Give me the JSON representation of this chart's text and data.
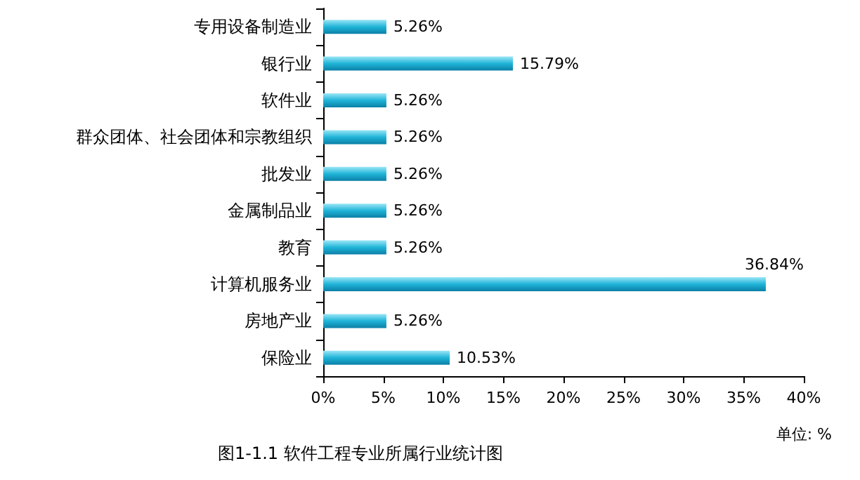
{
  "chart_data": {
    "type": "bar",
    "orientation": "horizontal",
    "title": "图1-1.1 软件工程专业所属行业统计图",
    "categories": [
      "专用设备制造业",
      "银行业",
      "软件业",
      "群众团体、社会团体和宗教组织",
      "批发业",
      "金属制品业",
      "教育",
      "计算机服务业",
      "房地产业",
      "保险业"
    ],
    "values": [
      5.26,
      15.79,
      5.26,
      5.26,
      5.26,
      5.26,
      5.26,
      36.84,
      5.26,
      10.53
    ],
    "value_labels": [
      "5.26%",
      "15.79%",
      "5.26%",
      "5.26%",
      "5.26%",
      "5.26%",
      "5.26%",
      "36.84%",
      "5.26%",
      "10.53%"
    ],
    "color": "#1fb4d8",
    "xlim": [
      0,
      40
    ],
    "xticks": [
      {
        "value": 0,
        "label": "0%"
      },
      {
        "value": 5,
        "label": "5%"
      },
      {
        "value": 10,
        "label": "10%"
      },
      {
        "value": 15,
        "label": "15%"
      },
      {
        "value": 20,
        "label": "20%"
      },
      {
        "value": 25,
        "label": "25%"
      },
      {
        "value": 30,
        "label": "30%"
      },
      {
        "value": 35,
        "label": "35%"
      },
      {
        "value": 40,
        "label": "40%"
      }
    ],
    "annotations": [
      "单位: %"
    ],
    "grid": false
  }
}
